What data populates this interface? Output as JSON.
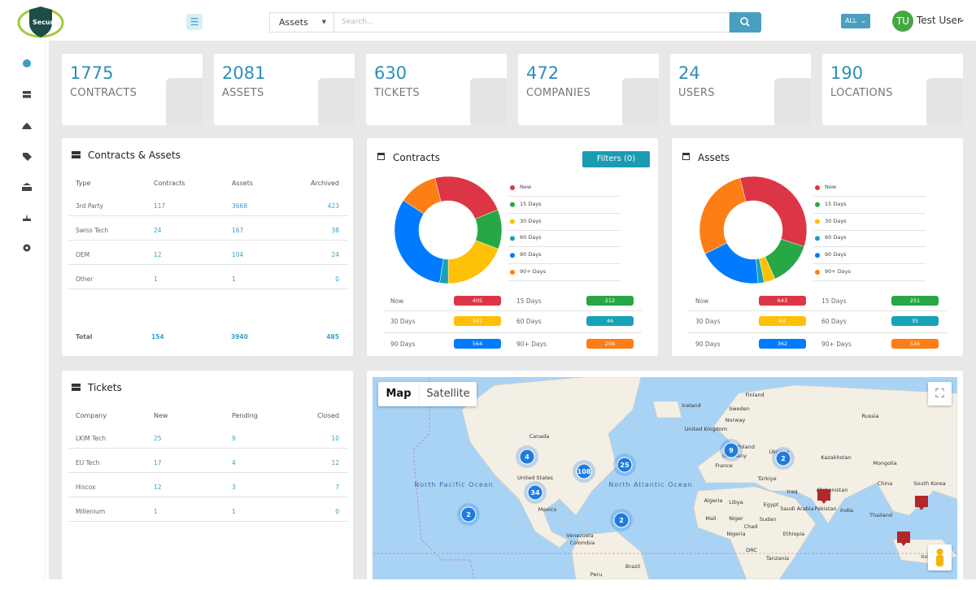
{
  "header": {
    "logo": "SecurIT",
    "search_scope": "Assets",
    "search_placeholder": "Search...",
    "filter": "ALL",
    "user_initials": "TU",
    "user_name": "Test User"
  },
  "stats": [
    {
      "value": 1775,
      "label": "CONTRACTS"
    },
    {
      "value": 2081,
      "label": "ASSETS"
    },
    {
      "value": 630,
      "label": "TICKETS"
    },
    {
      "value": 472,
      "label": "COMPANIES"
    },
    {
      "value": 24,
      "label": "USERS"
    },
    {
      "value": 190,
      "label": "LOCATIONS"
    }
  ],
  "contracts_assets": {
    "title": "Contracts & Assets",
    "columns": [
      "Type",
      "Contracts",
      "Assets",
      "Archived"
    ],
    "rows": [
      [
        "3rd Party",
        117,
        3668,
        423
      ],
      [
        "Swiss Tech",
        24,
        167,
        38
      ],
      [
        "OEM",
        12,
        104,
        24
      ],
      [
        "Other",
        1,
        1,
        0
      ]
    ],
    "total": [
      "Total",
      154,
      3940,
      485
    ]
  },
  "contracts_chart": {
    "type": "donut",
    "title": "Contracts",
    "filter_button": "Filters (0)",
    "segments": [
      {
        "legend": "New",
        "label": "Now",
        "value": 405,
        "color": "#dc3545"
      },
      {
        "legend": "15 Days",
        "label": "15 Days",
        "value": 212,
        "color": "#28a745"
      },
      {
        "legend": "30 Days",
        "label": "30 Days",
        "value": 341,
        "color": "#ffc107"
      },
      {
        "legend": "60 Days",
        "label": "60 Days",
        "value": 46,
        "color": "#17a2b8"
      },
      {
        "legend": "90 Days",
        "label": "90 Days",
        "value": 564,
        "color": "#007bff"
      },
      {
        "legend": "90+ Days",
        "label": "90+ Days",
        "value": 208,
        "color": "#fd7e14"
      }
    ]
  },
  "assets_chart": {
    "type": "donut",
    "title": "Assets",
    "segments": [
      {
        "legend": "New",
        "label": "Now",
        "value": 643,
        "color": "#dc3545"
      },
      {
        "legend": "15 Days",
        "label": "15 Days",
        "value": 251,
        "color": "#28a745"
      },
      {
        "legend": "30 Days",
        "label": "30 Days",
        "value": 64,
        "color": "#ffc107"
      },
      {
        "legend": "60 Days",
        "label": "60 Days",
        "value": 35,
        "color": "#17a2b8"
      },
      {
        "legend": "90 Days",
        "label": "90 Days",
        "value": 362,
        "color": "#007bff"
      },
      {
        "legend": "90+ Days",
        "label": "90+ Days",
        "value": 536,
        "color": "#fd7e14"
      }
    ]
  },
  "tickets": {
    "title": "Tickets",
    "columns": [
      "Company",
      "New",
      "Pending",
      "Closed"
    ],
    "rows": [
      [
        "LKIM Tech",
        25,
        9,
        10
      ],
      [
        "EU Tech",
        17,
        4,
        12
      ],
      [
        "Hiscox",
        12,
        3,
        7
      ],
      [
        "Millenium",
        1,
        1,
        0
      ]
    ]
  },
  "map": {
    "buttons": [
      "Map",
      "Satellite"
    ],
    "labels": [
      "Iceland",
      "Finland",
      "Sweden",
      "Norway",
      "Russia",
      "United Kingdom",
      "Poland",
      "Germany",
      "France",
      "Ukraine",
      "Kazakhstan",
      "Mongolia",
      "Türkiye",
      "Iraq",
      "Afghanistan",
      "China",
      "South Korea",
      "Canada",
      "United States",
      "Mexico",
      "North Pacific Ocean",
      "North Atlantic Ocean",
      "Algeria",
      "Libya",
      "Egypt",
      "Saudi Arabia",
      "Pakistan",
      "India",
      "Thailand",
      "Mali",
      "Niger",
      "Sudan",
      "Chad",
      "Nigeria",
      "Ethiopia",
      "DRC",
      "Tanzania",
      "Venezuela",
      "Colombia",
      "Peru",
      "Brazil",
      "Indonesia"
    ],
    "clusters": [
      4,
      108,
      25,
      34,
      2,
      2,
      9,
      2
    ]
  }
}
